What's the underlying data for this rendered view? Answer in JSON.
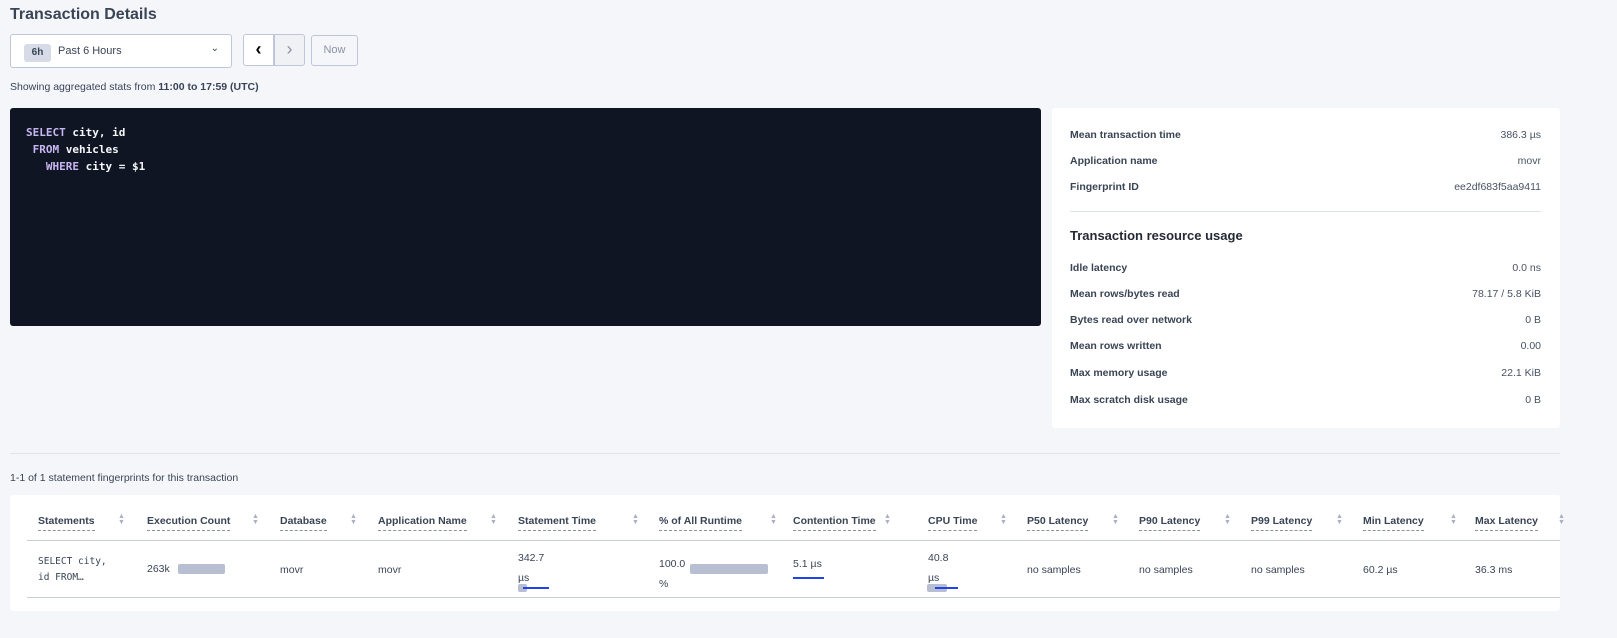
{
  "title": "Transaction Details",
  "time_selector": {
    "badge": "6h",
    "label": "Past 6 Hours",
    "chevron_icon": "chevron-down-icon"
  },
  "nav": {
    "prev_icon": "‹",
    "next_icon": "›",
    "now_label": "Now"
  },
  "range": {
    "prefix": "Showing aggregated stats from ",
    "value": "11:00 to 17:59 (UTC)"
  },
  "sql": [
    {
      "kw": "SELECT",
      "rest": " city, id",
      "indent": ""
    },
    {
      "kw": "FROM",
      "rest": " vehicles",
      "indent": " "
    },
    {
      "kw": "WHERE",
      "rest": " city = $1",
      "indent": "   "
    }
  ],
  "summary": {
    "rows": [
      {
        "label": "Mean transaction time",
        "value": "386.3 µs"
      },
      {
        "label": "Application name",
        "value": "movr"
      },
      {
        "label": "Fingerprint ID",
        "value": "ee2df683f5aa9411"
      }
    ],
    "resource_title": "Transaction resource usage",
    "resource_rows": [
      {
        "label": "Idle latency",
        "value": "0.0 ns"
      },
      {
        "label": "Mean rows/bytes read",
        "value": "78.17 / 5.8 KiB"
      },
      {
        "label": "Bytes read over network",
        "value": "0 B"
      },
      {
        "label": "Mean rows written",
        "value": "0.00"
      },
      {
        "label": "Max memory usage",
        "value": "22.1 KiB"
      },
      {
        "label": "Max scratch disk usage",
        "value": "0 B"
      }
    ]
  },
  "statement_count": "1-1 of 1 statement fingerprints for this transaction",
  "table": {
    "columns": [
      "Statements",
      "Execution Count",
      "Database",
      "Application Name",
      "Statement Time",
      "% of All Runtime",
      "Contention Time",
      "CPU Time",
      "P50 Latency",
      "P90 Latency",
      "P99 Latency",
      "Min Latency",
      "Max Latency"
    ],
    "row": {
      "statement_l1": "SELECT city,",
      "statement_l2": "id FROM…",
      "exec_count": "263k",
      "database": "movr",
      "app": "movr",
      "stmt_time_l1": "342.7",
      "stmt_time_l2": "µs",
      "pct_l1": "100.0",
      "pct_l2": "%",
      "contention": "5.1 µs",
      "cpu_l1": "40.8",
      "cpu_l2": "µs",
      "p50": "no samples",
      "p90": "no samples",
      "p99": "no samples",
      "min": "60.2 µs",
      "max": "36.3 ms",
      "pct_fraction": 1.0
    }
  },
  "colors": {
    "accent": "#2043ea",
    "sql_bg": "#0f1522",
    "keyword": "#c7b6f2",
    "bar": "#b8bfd3"
  }
}
